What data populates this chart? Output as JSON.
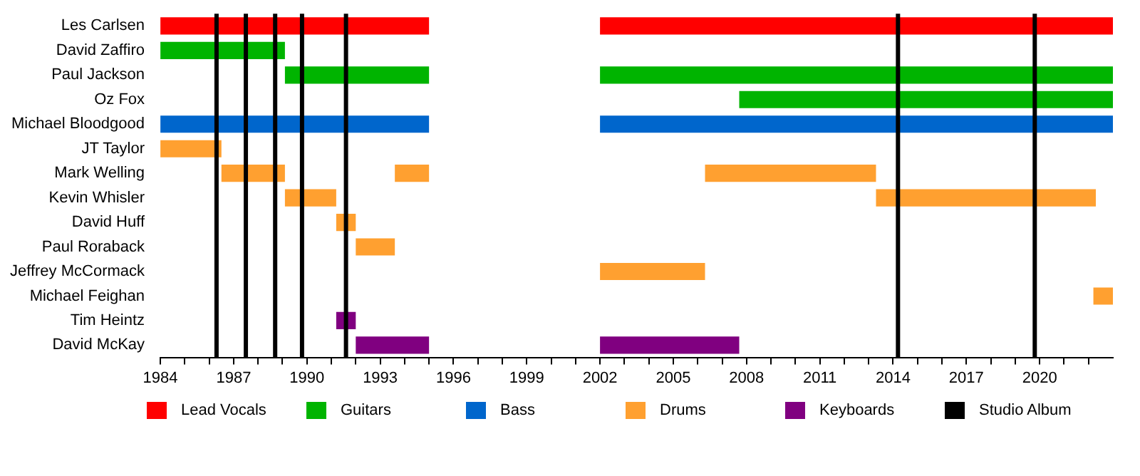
{
  "chart_data": {
    "type": "bar",
    "orientation": "horizontal",
    "categories": [
      "Les Carlsen",
      "David Zaffiro",
      "Paul Jackson",
      "Oz Fox",
      "Michael Bloodgood",
      "JT Taylor",
      "Mark Welling",
      "Kevin Whisler",
      "David Huff",
      "Paul Roraback",
      "Jeffrey McCormack",
      "Michael Feighan",
      "Tim Heintz",
      "David McKay"
    ],
    "series": [
      {
        "name": "Lead Vocals",
        "color": "#ff0000",
        "values": [
          11,
          null,
          null,
          null,
          null,
          null,
          null,
          null,
          null,
          null,
          null,
          null,
          null,
          null
        ],
        "base": [
          1984,
          null,
          null,
          null,
          null,
          null,
          null,
          null,
          null,
          null,
          null,
          null,
          null,
          null
        ]
      },
      {
        "color": "#ff0000",
        "values": [
          21,
          null,
          null,
          null,
          null,
          null,
          null,
          null,
          null,
          null,
          null,
          null,
          null,
          null
        ],
        "base": [
          2002,
          null,
          null,
          null,
          null,
          null,
          null,
          null,
          null,
          null,
          null,
          null,
          null,
          null
        ]
      },
      {
        "name": "Guitars",
        "color": "#00b400",
        "values": [
          null,
          5.1,
          5.9,
          null,
          null,
          null,
          null,
          null,
          null,
          null,
          null,
          null,
          null,
          null
        ],
        "base": [
          null,
          1984,
          1989.1,
          null,
          null,
          null,
          null,
          null,
          null,
          null,
          null,
          null,
          null,
          null
        ]
      },
      {
        "color": "#00b400",
        "values": [
          null,
          null,
          21,
          15.3,
          null,
          null,
          null,
          null,
          null,
          null,
          null,
          null,
          null,
          null
        ],
        "base": [
          null,
          null,
          2002,
          2007.7,
          null,
          null,
          null,
          null,
          null,
          null,
          null,
          null,
          null,
          null
        ]
      },
      {
        "name": "Bass",
        "color": "#0066cc",
        "values": [
          null,
          null,
          null,
          null,
          11,
          null,
          null,
          null,
          null,
          null,
          null,
          null,
          null,
          null
        ],
        "base": [
          null,
          null,
          null,
          null,
          1984,
          null,
          null,
          null,
          null,
          null,
          null,
          null,
          null,
          null
        ]
      },
      {
        "color": "#0066cc",
        "values": [
          null,
          null,
          null,
          null,
          21,
          null,
          null,
          null,
          null,
          null,
          null,
          null,
          null,
          null
        ],
        "base": [
          null,
          null,
          null,
          null,
          2002,
          null,
          null,
          null,
          null,
          null,
          null,
          null,
          null,
          null
        ]
      },
      {
        "name": "Drums",
        "color": "#ffa030",
        "values": [
          null,
          null,
          null,
          null,
          null,
          2.5,
          2.6,
          2.1,
          0.8,
          1.6,
          4.3,
          0.8,
          null,
          null
        ],
        "base": [
          null,
          null,
          null,
          null,
          null,
          1984,
          1986.5,
          1989.1,
          1991.2,
          1992,
          2002,
          2022.2,
          null,
          null
        ]
      },
      {
        "color": "#ffa030",
        "values": [
          null,
          null,
          null,
          null,
          null,
          null,
          1.4,
          9,
          null,
          null,
          null,
          null,
          null,
          null
        ],
        "base": [
          null,
          null,
          null,
          null,
          null,
          null,
          1993.6,
          2013.3,
          null,
          null,
          null,
          null,
          null,
          null
        ]
      },
      {
        "color": "#ffa030",
        "values": [
          null,
          null,
          null,
          null,
          null,
          null,
          7,
          null,
          null,
          null,
          null,
          null,
          null,
          null
        ],
        "base": [
          null,
          null,
          null,
          null,
          null,
          null,
          2006.3,
          null,
          null,
          null,
          null,
          null,
          null,
          null
        ]
      },
      {
        "name": "Keyboards",
        "color": "#800080",
        "values": [
          null,
          null,
          null,
          null,
          null,
          null,
          null,
          null,
          null,
          null,
          null,
          null,
          0.8,
          3
        ],
        "base": [
          null,
          null,
          null,
          null,
          null,
          null,
          null,
          null,
          null,
          null,
          null,
          null,
          1991.2,
          1992
        ]
      },
      {
        "color": "#800080",
        "values": [
          null,
          null,
          null,
          null,
          null,
          null,
          null,
          null,
          null,
          null,
          null,
          null,
          null,
          5.7
        ],
        "base": [
          null,
          null,
          null,
          null,
          null,
          null,
          null,
          null,
          null,
          null,
          null,
          null,
          null,
          2002
        ]
      }
    ],
    "ref_lines": [
      {
        "axis": "x",
        "value": 1986.3,
        "label": "Studio Album",
        "color": "#000000"
      },
      {
        "axis": "x",
        "value": 1987.5,
        "color": "#000000"
      },
      {
        "axis": "x",
        "value": 1988.7,
        "color": "#000000"
      },
      {
        "axis": "x",
        "value": 1989.8,
        "color": "#000000"
      },
      {
        "axis": "x",
        "value": 1991.6,
        "color": "#000000"
      },
      {
        "axis": "x",
        "value": 2014.2,
        "color": "#000000"
      },
      {
        "axis": "x",
        "value": 2019.8,
        "color": "#000000"
      }
    ],
    "xlim": [
      1984,
      2023
    ],
    "xticks": [
      1984,
      {
        "value": 1985,
        "label": null
      },
      {
        "value": 1986,
        "label": null
      },
      1987,
      {
        "value": 1988,
        "label": null
      },
      {
        "value": 1989,
        "label": null
      },
      1990,
      {
        "value": 1991,
        "label": null
      },
      {
        "value": 1992,
        "label": null
      },
      1993,
      {
        "value": 1994,
        "label": null
      },
      {
        "value": 1995,
        "label": null
      },
      1996,
      {
        "value": 1997,
        "label": null
      },
      {
        "value": 1998,
        "label": null
      },
      1999,
      {
        "value": 2000,
        "label": null
      },
      {
        "value": 2001,
        "label": null
      },
      2002,
      {
        "value": 2003,
        "label": null
      },
      {
        "value": 2004,
        "label": null
      },
      2005,
      {
        "value": 2006,
        "label": null
      },
      {
        "value": 2007,
        "label": null
      },
      2008,
      {
        "value": 2009,
        "label": null
      },
      {
        "value": 2010,
        "label": null
      },
      2011,
      {
        "value": 2012,
        "label": null
      },
      {
        "value": 2013,
        "label": null
      },
      2014,
      {
        "value": 2015,
        "label": null
      },
      {
        "value": 2016,
        "label": null
      },
      2017,
      {
        "value": 2018,
        "label": null
      },
      {
        "value": 2019,
        "label": null
      },
      2020,
      {
        "value": 2021,
        "label": null
      },
      {
        "value": 2022,
        "label": null
      }
    ],
    "grid": false,
    "legend": "bottom"
  }
}
